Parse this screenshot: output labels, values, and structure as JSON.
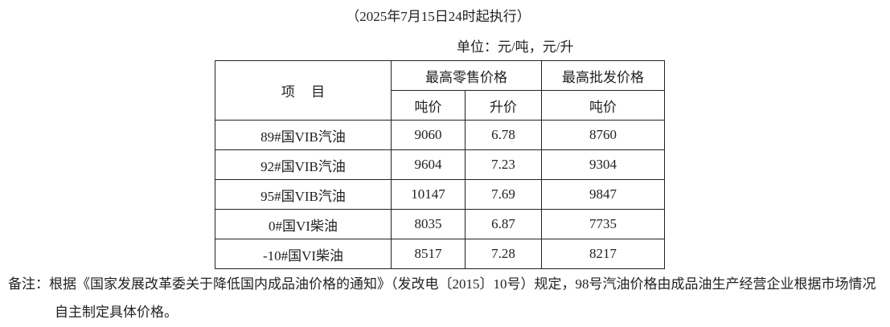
{
  "subtitle": "（2025年7月15日24时起执行）",
  "unit": "单位：元/吨，元/升",
  "table": {
    "header": {
      "item": "项目",
      "retail": "最高零售价格",
      "wholesale": "最高批发价格",
      "retail_ton": "吨价",
      "retail_liter": "升价",
      "wholesale_ton": "吨价"
    },
    "rows": [
      [
        "89#国VIB汽油",
        9060,
        6.78,
        8760
      ],
      [
        "92#国VIB汽油",
        9604,
        7.23,
        9304
      ],
      [
        "95#国VIB汽油",
        10147,
        7.69,
        9847
      ],
      [
        "0#国VI柴油",
        8035,
        6.87,
        7735
      ],
      [
        "-10#国VI柴油",
        8517,
        7.28,
        8217
      ]
    ]
  },
  "note": {
    "label": "备注：",
    "text": "根据《国家发展改革委关于降低国内成品油价格的通知》（发改电〔2015〕10号）规定，98号汽油价格由成品油生产经营企业根据市场情况自主制定具体价格。"
  }
}
